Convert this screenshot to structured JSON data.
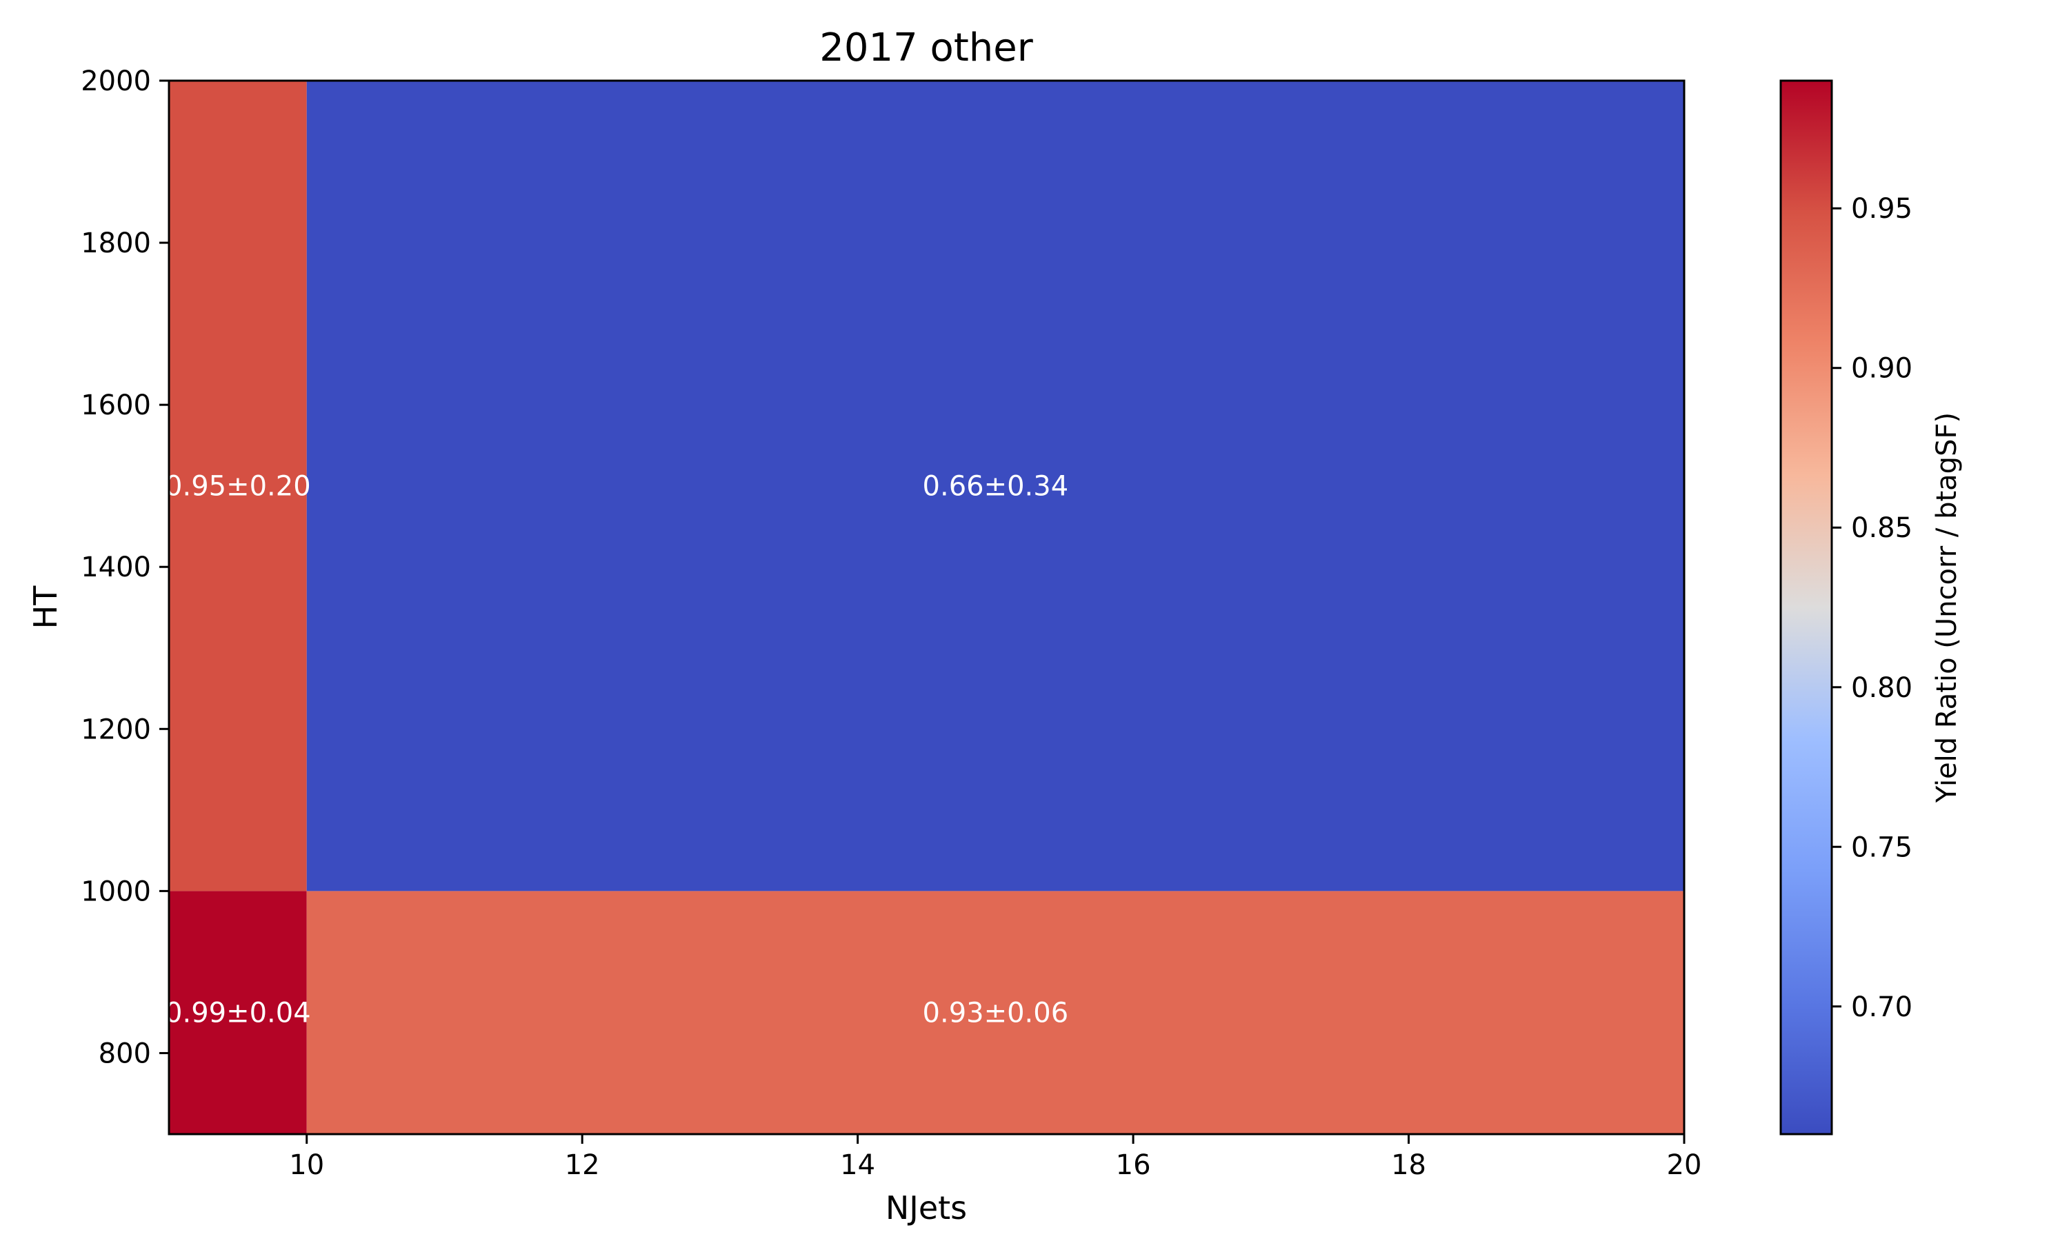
{
  "chart_data": {
    "type": "heatmap",
    "title": "2017 other",
    "xlabel": "NJets",
    "ylabel": "HT",
    "xlim": [
      9,
      20
    ],
    "ylim": [
      700,
      2000
    ],
    "x_ticks": [
      10,
      12,
      14,
      16,
      18,
      20
    ],
    "y_ticks": [
      800,
      1000,
      1200,
      1400,
      1600,
      1800,
      2000
    ],
    "colormap": "coolwarm",
    "colorbar": {
      "label": "Yield Ratio (Uncorr / btagSF)",
      "range": [
        0.66,
        0.99
      ],
      "ticks": [
        "0.70",
        "0.75",
        "0.80",
        "0.85",
        "0.90",
        "0.95"
      ]
    },
    "cells": [
      {
        "x": [
          9,
          10
        ],
        "y": [
          700,
          1000
        ],
        "value": 0.99,
        "label": "0.99±0.04"
      },
      {
        "x": [
          10,
          20
        ],
        "y": [
          700,
          1000
        ],
        "value": 0.93,
        "label": "0.93±0.06"
      },
      {
        "x": [
          9,
          10
        ],
        "y": [
          1000,
          2000
        ],
        "value": 0.95,
        "label": "0.95±0.20"
      },
      {
        "x": [
          10,
          20
        ],
        "y": [
          1000,
          2000
        ],
        "value": 0.66,
        "label": "0.66±0.34"
      }
    ]
  }
}
